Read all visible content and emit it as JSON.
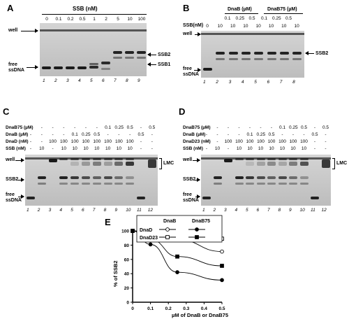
{
  "panels": {
    "A": {
      "letter": "A",
      "title": "SSB  (nM)",
      "ssb_values": [
        "0",
        "0.1",
        "0.2",
        "0.5",
        "1",
        "2",
        "5",
        "10",
        "100"
      ],
      "lanes": [
        "1",
        "2",
        "3",
        "4",
        "5",
        "6",
        "7",
        "8",
        "9"
      ],
      "labels": {
        "well": "well",
        "free_ssdna": "free\nssDNA",
        "ssb2": "SSB2",
        "ssb1": "SSB1"
      }
    },
    "B": {
      "letter": "B",
      "dnab_header": "DnaB  (µM)",
      "dnab75_header": "DnaB75  (µM)",
      "conc_row": [
        "0.1",
        "0.25",
        "0.5",
        "0.1",
        "0.25",
        "0.5"
      ],
      "ssb_label": "SSB(nM)",
      "ssb_row": [
        "0",
        "10",
        "10",
        "10",
        "10",
        "10",
        "10",
        "10"
      ],
      "lanes": [
        "1",
        "2",
        "3",
        "4",
        "5",
        "6",
        "7",
        "8"
      ],
      "labels": {
        "well": "well",
        "free_ssdna": "free\nssDNA",
        "ssb2": "SSB2"
      }
    },
    "C": {
      "letter": "C",
      "rows": [
        {
          "label": "DnaB75  (µM)",
          "values": [
            "-",
            "-",
            "-",
            "-",
            "-",
            "-",
            "-",
            "0.1",
            "0.25",
            "0.5",
            "-",
            "0.5"
          ]
        },
        {
          "label": "DnaB  (µM)",
          "values": [
            "-",
            "-",
            "-",
            "-",
            "0.1",
            "0.25",
            "0.5",
            "-",
            "-",
            "-",
            "0.5",
            "-"
          ]
        },
        {
          "label": "DnaD  (nM)",
          "values": [
            "-",
            "-",
            "100",
            "100",
            "100",
            "100",
            "100",
            "100",
            "100",
            "100",
            "-",
            "-"
          ]
        },
        {
          "label": "SSB  (nM)",
          "values": [
            "-",
            "10",
            "-",
            "10",
            "10",
            "10",
            "10",
            "10",
            "10",
            "10",
            "-",
            "-"
          ]
        }
      ],
      "lanes": [
        "1",
        "2",
        "3",
        "4",
        "5",
        "6",
        "7",
        "8",
        "9",
        "10",
        "11",
        "12"
      ],
      "labels": {
        "well": "well",
        "ssb2": "SSB2",
        "free_ssdna": "free\nssDNA",
        "lmc": "LMC"
      }
    },
    "D": {
      "letter": "D",
      "rows": [
        {
          "label": "DnaB75  (µM)",
          "values": [
            "-",
            "-",
            "-",
            "-",
            "-",
            "-",
            "-",
            "0.1",
            "0.25",
            "0.5",
            "-",
            "0.5"
          ]
        },
        {
          "label": "DnaB  (µM)",
          "values": [
            "-",
            "-",
            "-",
            "-",
            "0.1",
            "0.25",
            "0.5",
            "-",
            "-",
            "-",
            "0.5",
            "-"
          ]
        },
        {
          "label": "DnaD23  (nM)",
          "values": [
            "-",
            "-",
            "100",
            "100",
            "100",
            "100",
            "100",
            "100",
            "100",
            "100",
            "-",
            "-"
          ]
        },
        {
          "label": "SSB  (nM)",
          "values": [
            "-",
            "10",
            "-",
            "10",
            "10",
            "10",
            "10",
            "10",
            "10",
            "10",
            "-",
            "-"
          ]
        }
      ],
      "lanes": [
        "1",
        "2",
        "3",
        "4",
        "5",
        "6",
        "7",
        "8",
        "9",
        "10",
        "11",
        "12"
      ],
      "labels": {
        "well": "well",
        "ssb2": "SSB2",
        "free_ssdna": "free\nssDNA",
        "lmc": "LMC"
      }
    },
    "E": {
      "letter": "E",
      "legend": {
        "col1": "DnaB",
        "col2": "DnaB75",
        "row1": "DnaD",
        "row2": "DnaD23"
      }
    }
  },
  "chart_data": {
    "type": "line",
    "title": "",
    "xlabel": "µM of DnaB or DnaB75",
    "ylabel": "% of SSB2",
    "xlim": [
      0,
      0.5
    ],
    "ylim": [
      0,
      100
    ],
    "xticks": [
      "0",
      "0.1",
      "0.2",
      "0.3",
      "0.4",
      "0.5"
    ],
    "yticks": [
      "0",
      "20",
      "40",
      "60",
      "80",
      "100"
    ],
    "x": [
      0,
      0.1,
      0.25,
      0.5
    ],
    "series": [
      {
        "name": "DnaD / DnaB",
        "marker": "open-circle",
        "values": [
          100,
          97,
          88,
          71
        ]
      },
      {
        "name": "DnaD / DnaB75",
        "marker": "filled-circle",
        "values": [
          100,
          81,
          42,
          31
        ]
      },
      {
        "name": "DnaD23 / DnaB",
        "marker": "open-square",
        "values": [
          100,
          99,
          97,
          89
        ]
      },
      {
        "name": "DnaD23 / DnaB75",
        "marker": "filled-square",
        "values": [
          100,
          88,
          64,
          51
        ]
      }
    ]
  }
}
